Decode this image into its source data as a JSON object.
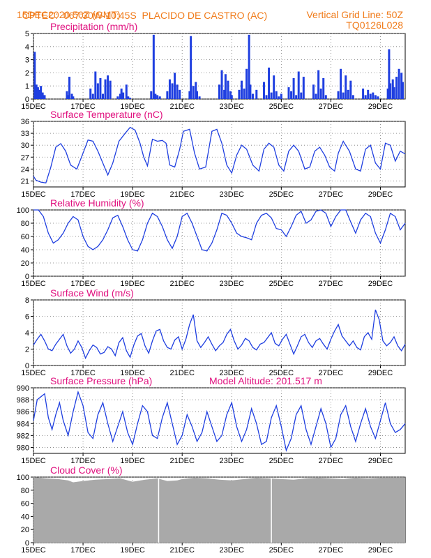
{
  "header": {
    "source": "CPTEC:",
    "coords": "067:30W-10:45S",
    "station": "PLACIDO DE CASTRO (AC)",
    "run": "15DEC2020 50Z (GMT)",
    "grid_note": "Vertical Grid Line: 50Z",
    "model": "TQ0126L028"
  },
  "colors": {
    "header": "#f07b1a",
    "title": "#e0117f",
    "series": "#1f3fe0",
    "cloud": "#a9a9a9"
  },
  "chart_data": [
    {
      "id": "precip",
      "type": "bar",
      "title": "Precipitation (mm/h)",
      "ylim": [
        0,
        5
      ],
      "yticks": [
        0,
        1,
        2,
        3,
        4,
        5
      ],
      "x_labels": [
        "15DEC",
        "17DEC",
        "19DEC",
        "21DEC",
        "23DEC",
        "25DEC",
        "27DEC",
        "29DEC"
      ],
      "x_start": 15,
      "x_end": 30,
      "x": [
        15.05,
        15.12,
        15.18,
        15.24,
        15.3,
        15.37,
        15.45,
        16.35,
        16.4,
        16.45,
        16.55,
        16.6,
        17.3,
        17.4,
        17.5,
        17.6,
        17.7,
        17.8,
        17.9,
        18.0,
        18.1,
        18.4,
        18.5,
        18.55,
        18.62,
        18.75,
        18.82,
        18.9,
        19.75,
        19.85,
        19.92,
        20.0,
        20.1,
        20.4,
        20.5,
        20.6,
        20.7,
        20.8,
        20.9,
        21.3,
        21.35,
        21.45,
        21.55,
        21.6,
        21.7,
        22.5,
        22.6,
        22.7,
        22.75,
        22.85,
        22.95,
        23.0,
        23.3,
        23.4,
        23.5,
        23.6,
        23.7,
        23.75,
        23.85,
        24.0,
        24.3,
        24.4,
        24.5,
        24.6,
        24.7,
        24.8,
        24.9,
        25.0,
        25.3,
        25.4,
        25.5,
        25.6,
        25.7,
        25.8,
        25.9,
        26.3,
        26.4,
        26.5,
        26.6,
        26.7,
        26.8,
        27.3,
        27.4,
        27.5,
        27.6,
        27.7,
        27.8,
        27.9,
        28.3,
        28.4,
        28.5,
        28.6,
        28.7,
        28.8,
        28.9,
        29.3,
        29.35,
        29.4,
        29.5,
        29.55,
        29.65,
        29.75,
        29.85,
        29.9
      ],
      "y": [
        3.6,
        1.1,
        0.9,
        0.7,
        1.0,
        0.5,
        0.3,
        0.6,
        0.3,
        1.7,
        0.4,
        0.2,
        0.8,
        0.4,
        2.1,
        1.2,
        1.6,
        0.4,
        1.5,
        1.8,
        1.4,
        0.2,
        0.4,
        0.8,
        0.5,
        1.1,
        0.2,
        0.1,
        0.6,
        4.9,
        0.4,
        0.3,
        0.2,
        0.6,
        1.5,
        1.2,
        2.0,
        1.1,
        0.7,
        0.6,
        4.8,
        1.0,
        1.3,
        0.6,
        0.2,
        1.1,
        2.2,
        0.7,
        1.9,
        1.4,
        0.6,
        0.3,
        0.7,
        1.4,
        0.8,
        2.3,
        4.9,
        1.1,
        0.4,
        0.7,
        1.3,
        0.3,
        2.4,
        0.5,
        1.8,
        0.6,
        0.2,
        0.4,
        0.9,
        0.6,
        1.6,
        0.3,
        2.1,
        0.5,
        1.7,
        1.1,
        0.4,
        2.2,
        0.8,
        1.6,
        0.3,
        0.6,
        2.3,
        0.5,
        1.8,
        0.7,
        1.4,
        0.3,
        0.8,
        0.3,
        0.7,
        0.4,
        0.5,
        0.3,
        0.2,
        0.8,
        3.8,
        1.2,
        1.5,
        0.9,
        1.7,
        2.3,
        2.0,
        1.3
      ]
    },
    {
      "id": "temp",
      "type": "line",
      "title": "Surface Temperature (nC)",
      "ylim": [
        19.5,
        36
      ],
      "yticks": [
        21,
        24,
        27,
        30,
        33,
        36
      ],
      "x_labels": [
        "15DEC",
        "17DEC",
        "19DEC",
        "21DEC",
        "23DEC",
        "25DEC",
        "27DEC",
        "29DEC"
      ],
      "x_start": 15,
      "x_end": 30,
      "x": [
        15.0,
        15.1,
        15.3,
        15.5,
        15.7,
        15.9,
        16.1,
        16.3,
        16.5,
        16.75,
        17.0,
        17.2,
        17.4,
        17.6,
        17.8,
        18.0,
        18.2,
        18.45,
        18.7,
        18.9,
        19.1,
        19.3,
        19.45,
        19.6,
        19.8,
        20.0,
        20.2,
        20.35,
        20.5,
        20.7,
        20.9,
        21.05,
        21.3,
        21.5,
        21.7,
        21.95,
        22.2,
        22.4,
        22.6,
        22.8,
        23.0,
        23.2,
        23.4,
        23.6,
        23.85,
        24.1,
        24.3,
        24.5,
        24.7,
        24.9,
        25.1,
        25.3,
        25.5,
        25.7,
        25.95,
        26.15,
        26.35,
        26.55,
        26.75,
        26.95,
        27.15,
        27.3,
        27.5,
        27.75,
        28.0,
        28.2,
        28.4,
        28.6,
        28.8,
        29.0,
        29.2,
        29.4,
        29.6,
        29.8,
        30.0
      ],
      "y": [
        22.2,
        21.2,
        20.7,
        20.5,
        24.5,
        29.5,
        30.4,
        28.5,
        25.0,
        24.0,
        28.0,
        31.3,
        31.0,
        28.5,
        25.5,
        22.5,
        25.5,
        31.0,
        33.0,
        34.5,
        33.8,
        30.5,
        27.0,
        24.8,
        31.5,
        31.0,
        31.2,
        30.5,
        25.0,
        24.5,
        29.0,
        33.5,
        34.0,
        28.0,
        24.0,
        24.5,
        33.5,
        34.0,
        30.5,
        25.0,
        23.0,
        27.5,
        30.0,
        29.0,
        25.0,
        23.5,
        29.0,
        30.5,
        29.5,
        25.0,
        23.5,
        28.5,
        30.0,
        28.5,
        24.0,
        24.5,
        28.5,
        29.5,
        27.5,
        24.5,
        23.5,
        28.0,
        31.0,
        28.5,
        24.0,
        23.5,
        29.0,
        30.0,
        25.5,
        24.0,
        30.5,
        30.0,
        26.0,
        28.5,
        27.8
      ]
    },
    {
      "id": "rh",
      "type": "line",
      "title": "Relative Humidity (%)",
      "ylim": [
        0,
        100
      ],
      "yticks": [
        0,
        20,
        40,
        60,
        80,
        100
      ],
      "x_labels": [
        "15DEC",
        "17DEC",
        "19DEC",
        "21DEC",
        "23DEC",
        "25DEC",
        "27DEC",
        "29DEC"
      ],
      "x_start": 15,
      "x_end": 30,
      "x": [
        15.0,
        15.2,
        15.4,
        15.6,
        15.8,
        16.0,
        16.2,
        16.4,
        16.6,
        16.8,
        17.0,
        17.2,
        17.4,
        17.6,
        17.8,
        18.0,
        18.2,
        18.4,
        18.6,
        18.8,
        19.0,
        19.2,
        19.4,
        19.6,
        19.8,
        20.0,
        20.2,
        20.4,
        20.6,
        20.8,
        21.0,
        21.2,
        21.4,
        21.6,
        21.8,
        22.0,
        22.2,
        22.4,
        22.6,
        22.8,
        23.0,
        23.2,
        23.4,
        23.6,
        23.8,
        24.0,
        24.2,
        24.4,
        24.6,
        24.8,
        25.0,
        25.2,
        25.4,
        25.6,
        25.8,
        26.0,
        26.2,
        26.4,
        26.6,
        26.8,
        27.0,
        27.2,
        27.4,
        27.6,
        27.8,
        28.0,
        28.2,
        28.4,
        28.6,
        28.8,
        29.0,
        29.2,
        29.4,
        29.6,
        29.8,
        30.0
      ],
      "y": [
        100,
        100,
        90,
        65,
        50,
        55,
        65,
        80,
        90,
        85,
        60,
        45,
        40,
        45,
        55,
        70,
        88,
        92,
        75,
        55,
        40,
        38,
        55,
        80,
        95,
        90,
        75,
        55,
        42,
        60,
        90,
        95,
        80,
        60,
        40,
        38,
        50,
        70,
        95,
        92,
        80,
        65,
        60,
        58,
        55,
        80,
        92,
        95,
        88,
        72,
        70,
        60,
        75,
        92,
        98,
        80,
        85,
        98,
        100,
        95,
        75,
        90,
        100,
        100,
        82,
        65,
        85,
        95,
        90,
        65,
        50,
        70,
        95,
        90,
        70,
        80
      ]
    },
    {
      "id": "wind",
      "type": "line",
      "title": "Surface Wind (m/s)",
      "ylim": [
        0,
        8
      ],
      "yticks": [
        0,
        2,
        4,
        6,
        8
      ],
      "x_labels": [
        "15DEC",
        "17DEC",
        "19DEC",
        "21DEC",
        "23DEC",
        "25DEC",
        "27DEC",
        "29DEC"
      ],
      "x_start": 15,
      "x_end": 30,
      "x": [
        15.0,
        15.15,
        15.3,
        15.45,
        15.6,
        15.75,
        15.9,
        16.05,
        16.2,
        16.35,
        16.5,
        16.65,
        16.8,
        16.95,
        17.1,
        17.25,
        17.4,
        17.55,
        17.7,
        17.85,
        18.0,
        18.15,
        18.3,
        18.45,
        18.6,
        18.75,
        18.9,
        19.05,
        19.2,
        19.35,
        19.5,
        19.65,
        19.8,
        19.95,
        20.1,
        20.25,
        20.4,
        20.55,
        20.7,
        20.85,
        21.0,
        21.15,
        21.3,
        21.45,
        21.6,
        21.75,
        21.9,
        22.05,
        22.2,
        22.35,
        22.5,
        22.65,
        22.8,
        22.95,
        23.1,
        23.25,
        23.4,
        23.55,
        23.7,
        23.85,
        24.0,
        24.15,
        24.3,
        24.45,
        24.6,
        24.75,
        24.9,
        25.05,
        25.2,
        25.35,
        25.5,
        25.65,
        25.8,
        25.95,
        26.1,
        26.25,
        26.4,
        26.55,
        26.7,
        26.85,
        27.0,
        27.15,
        27.3,
        27.45,
        27.6,
        27.75,
        27.9,
        28.05,
        28.2,
        28.35,
        28.5,
        28.65,
        28.8,
        28.95,
        29.1,
        29.25,
        29.4,
        29.55,
        29.7,
        29.85,
        30.0
      ],
      "y": [
        2.5,
        3.2,
        3.8,
        3.0,
        2.0,
        1.8,
        2.6,
        3.2,
        3.8,
        2.4,
        1.5,
        2.0,
        3.0,
        2.2,
        0.9,
        1.8,
        2.5,
        2.2,
        1.4,
        1.6,
        2.3,
        2.0,
        1.2,
        2.8,
        3.4,
        1.8,
        1.0,
        2.5,
        3.6,
        3.9,
        2.4,
        1.5,
        3.0,
        4.2,
        4.4,
        3.0,
        2.2,
        2.0,
        3.1,
        3.5,
        2.0,
        3.2,
        5.0,
        6.2,
        3.0,
        2.2,
        2.8,
        3.5,
        2.6,
        1.8,
        2.4,
        2.8,
        3.8,
        4.4,
        3.0,
        2.0,
        2.5,
        3.3,
        3.0,
        2.2,
        1.9,
        2.6,
        2.8,
        3.4,
        4.0,
        2.7,
        2.4,
        3.2,
        3.8,
        2.6,
        1.4,
        2.4,
        3.5,
        3.8,
        2.8,
        2.2,
        3.0,
        3.3,
        2.6,
        2.0,
        3.2,
        4.2,
        5.0,
        3.6,
        3.0,
        2.4,
        3.0,
        2.2,
        1.9,
        3.5,
        4.0,
        3.2,
        6.8,
        5.6,
        3.0,
        2.4,
        2.8,
        3.5,
        2.4,
        1.8,
        2.6
      ]
    },
    {
      "id": "pres",
      "type": "line",
      "title": "Surface Pressure (hPa)",
      "annotation": "Model Altitude: 201.517 m",
      "ylim": [
        979,
        990
      ],
      "yticks": [
        980,
        982,
        984,
        986,
        988,
        990
      ],
      "x_labels": [
        "15DEC",
        "17DEC",
        "19DEC",
        "21DEC",
        "23DEC",
        "25DEC",
        "27DEC",
        "29DEC"
      ],
      "x_start": 15,
      "x_end": 30,
      "x": [
        15.0,
        15.15,
        15.3,
        15.45,
        15.6,
        15.75,
        15.9,
        16.05,
        16.2,
        16.4,
        16.6,
        16.8,
        17.0,
        17.2,
        17.4,
        17.6,
        17.8,
        18.0,
        18.2,
        18.4,
        18.6,
        18.8,
        19.0,
        19.2,
        19.4,
        19.6,
        19.8,
        20.0,
        20.2,
        20.4,
        20.6,
        20.8,
        21.0,
        21.2,
        21.4,
        21.6,
        21.8,
        22.0,
        22.2,
        22.4,
        22.6,
        22.8,
        23.0,
        23.2,
        23.4,
        23.6,
        23.8,
        24.0,
        24.2,
        24.4,
        24.6,
        24.8,
        25.0,
        25.2,
        25.4,
        25.6,
        25.8,
        26.0,
        26.2,
        26.4,
        26.6,
        26.8,
        27.0,
        27.2,
        27.4,
        27.6,
        27.8,
        28.0,
        28.2,
        28.4,
        28.6,
        28.8,
        29.0,
        29.2,
        29.4,
        29.6,
        29.8,
        30.0
      ],
      "y": [
        984.5,
        988.0,
        988.5,
        989.0,
        985.0,
        983.0,
        985.5,
        987.5,
        984.5,
        982.0,
        986.0,
        989.3,
        987.0,
        982.5,
        981.5,
        985.5,
        987.5,
        984.0,
        981.0,
        983.5,
        986.0,
        982.5,
        980.5,
        984.0,
        987.0,
        986.0,
        982.0,
        981.5,
        985.0,
        987.5,
        984.0,
        980.5,
        982.0,
        985.5,
        983.5,
        981.0,
        982.5,
        986.0,
        983.5,
        981.0,
        982.0,
        985.5,
        987.5,
        983.5,
        981.0,
        983.0,
        986.5,
        984.0,
        980.5,
        981.0,
        985.0,
        987.0,
        983.5,
        979.5,
        981.5,
        985.5,
        987.0,
        983.0,
        980.5,
        983.5,
        986.5,
        984.0,
        980.0,
        981.5,
        985.5,
        987.0,
        983.5,
        981.0,
        984.0,
        986.5,
        983.5,
        981.5,
        984.5,
        987.5,
        984.0,
        982.5,
        983.0,
        984.0
      ]
    },
    {
      "id": "cloud",
      "type": "area",
      "title": "Cloud Cover (%)",
      "ylim": [
        0,
        100
      ],
      "yticks": [
        0,
        20,
        40,
        60,
        80,
        100
      ],
      "x_labels": [
        "15DEC",
        "17DEC",
        "19DEC",
        "21DEC",
        "23DEC",
        "25DEC",
        "27DEC",
        "29DEC"
      ],
      "x_start": 15,
      "x_end": 30,
      "x": [
        15.0,
        15.5,
        16.0,
        16.4,
        16.6,
        17.0,
        17.5,
        18.0,
        18.5,
        18.8,
        19.0,
        19.5,
        20.0,
        20.2,
        20.4,
        20.8,
        21.0,
        21.5,
        22.0,
        22.5,
        23.0,
        23.5,
        24.0,
        24.5,
        25.0,
        25.5,
        26.0,
        26.5,
        27.0,
        27.5,
        28.0,
        28.5,
        29.0,
        29.5,
        30.0
      ],
      "y": [
        100,
        98,
        97,
        95,
        92,
        94,
        96,
        97,
        98,
        95,
        93,
        96,
        98,
        96,
        94,
        95,
        97,
        99,
        98,
        96,
        95,
        97,
        99,
        98,
        97,
        96,
        98,
        99,
        98,
        97,
        99,
        98,
        99,
        99,
        99
      ],
      "gaps": [
        20.05,
        24.6
      ]
    }
  ]
}
